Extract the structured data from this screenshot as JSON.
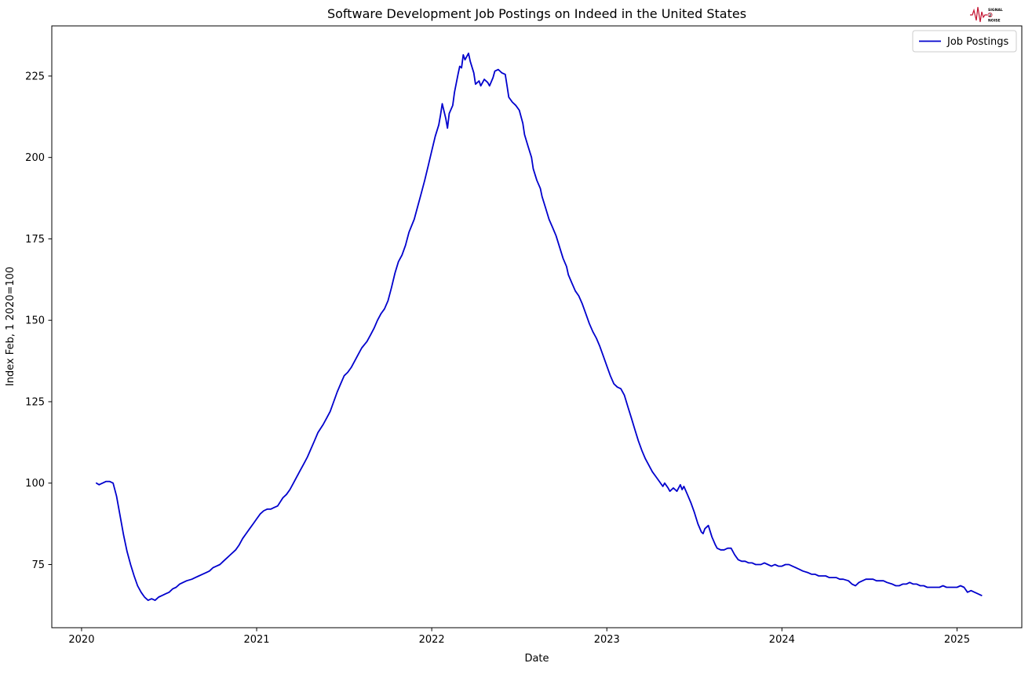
{
  "logo": {
    "word_top": "SIGNAL",
    "word_mid": "2",
    "word_bottom": "NOISE",
    "color": "#c41230"
  },
  "chart_data": {
    "type": "line",
    "title": "Software Development Job Postings on Indeed in the United States",
    "xlabel": "Date",
    "ylabel": "Index Feb, 1 2020=100",
    "grid": false,
    "legend_position": "upper right",
    "xlim": [
      2019.83,
      2025.37
    ],
    "ylim": [
      55.6,
      240.4
    ],
    "xticks": [
      2020,
      2021,
      2022,
      2023,
      2024,
      2025
    ],
    "yticks": [
      75,
      100,
      125,
      150,
      175,
      200,
      225
    ],
    "series": [
      {
        "name": "Job Postings",
        "color": "#0000cd",
        "points": [
          [
            2020.085,
            100.0
          ],
          [
            2020.1,
            99.5
          ],
          [
            2020.12,
            100.0
          ],
          [
            2020.14,
            100.5
          ],
          [
            2020.16,
            100.5
          ],
          [
            2020.18,
            100.0
          ],
          [
            2020.2,
            96.0
          ],
          [
            2020.22,
            90.0
          ],
          [
            2020.24,
            84.0
          ],
          [
            2020.26,
            79.0
          ],
          [
            2020.28,
            75.0
          ],
          [
            2020.3,
            71.5
          ],
          [
            2020.32,
            68.5
          ],
          [
            2020.34,
            66.5
          ],
          [
            2020.36,
            65.0
          ],
          [
            2020.38,
            64.0
          ],
          [
            2020.4,
            64.5
          ],
          [
            2020.42,
            64.0
          ],
          [
            2020.44,
            65.0
          ],
          [
            2020.46,
            65.5
          ],
          [
            2020.48,
            66.0
          ],
          [
            2020.5,
            66.5
          ],
          [
            2020.52,
            67.5
          ],
          [
            2020.54,
            68.0
          ],
          [
            2020.56,
            69.0
          ],
          [
            2020.58,
            69.5
          ],
          [
            2020.6,
            70.0
          ],
          [
            2020.63,
            70.5
          ],
          [
            2020.65,
            71.0
          ],
          [
            2020.67,
            71.5
          ],
          [
            2020.69,
            72.0
          ],
          [
            2020.71,
            72.5
          ],
          [
            2020.73,
            73.0
          ],
          [
            2020.75,
            74.0
          ],
          [
            2020.77,
            74.5
          ],
          [
            2020.79,
            75.0
          ],
          [
            2020.81,
            76.0
          ],
          [
            2020.83,
            77.0
          ],
          [
            2020.85,
            78.0
          ],
          [
            2020.88,
            79.5
          ],
          [
            2020.9,
            81.0
          ],
          [
            2020.92,
            83.0
          ],
          [
            2020.94,
            84.5
          ],
          [
            2020.96,
            86.0
          ],
          [
            2020.98,
            87.5
          ],
          [
            2021.0,
            89.0
          ],
          [
            2021.02,
            90.5
          ],
          [
            2021.04,
            91.5
          ],
          [
            2021.06,
            92.0
          ],
          [
            2021.08,
            92.0
          ],
          [
            2021.1,
            92.5
          ],
          [
            2021.12,
            93.0
          ],
          [
            2021.15,
            95.5
          ],
          [
            2021.17,
            96.5
          ],
          [
            2021.19,
            98.0
          ],
          [
            2021.21,
            100.0
          ],
          [
            2021.23,
            102.0
          ],
          [
            2021.25,
            104.0
          ],
          [
            2021.27,
            106.0
          ],
          [
            2021.29,
            108.0
          ],
          [
            2021.31,
            110.5
          ],
          [
            2021.33,
            113.0
          ],
          [
            2021.35,
            115.5
          ],
          [
            2021.38,
            118.0
          ],
          [
            2021.4,
            120.0
          ],
          [
            2021.42,
            122.0
          ],
          [
            2021.44,
            125.0
          ],
          [
            2021.46,
            128.0
          ],
          [
            2021.48,
            130.5
          ],
          [
            2021.5,
            133.0
          ],
          [
            2021.52,
            134.0
          ],
          [
            2021.54,
            135.5
          ],
          [
            2021.56,
            137.5
          ],
          [
            2021.58,
            139.5
          ],
          [
            2021.6,
            141.5
          ],
          [
            2021.63,
            143.5
          ],
          [
            2021.65,
            145.5
          ],
          [
            2021.67,
            147.5
          ],
          [
            2021.69,
            150.0
          ],
          [
            2021.71,
            152.0
          ],
          [
            2021.73,
            153.5
          ],
          [
            2021.75,
            156.0
          ],
          [
            2021.77,
            160.0
          ],
          [
            2021.79,
            164.5
          ],
          [
            2021.81,
            168.0
          ],
          [
            2021.83,
            170.0
          ],
          [
            2021.85,
            173.0
          ],
          [
            2021.87,
            177.0
          ],
          [
            2021.9,
            181.0
          ],
          [
            2021.92,
            185.0
          ],
          [
            2021.94,
            189.0
          ],
          [
            2021.96,
            193.0
          ],
          [
            2021.98,
            197.5
          ],
          [
            2022.0,
            202.0
          ],
          [
            2022.02,
            206.5
          ],
          [
            2022.04,
            210.0
          ],
          [
            2022.05,
            213.0
          ],
          [
            2022.06,
            216.5
          ],
          [
            2022.08,
            212.0
          ],
          [
            2022.09,
            209.0
          ],
          [
            2022.1,
            213.5
          ],
          [
            2022.12,
            216.0
          ],
          [
            2022.13,
            220.0
          ],
          [
            2022.15,
            225.5
          ],
          [
            2022.16,
            228.0
          ],
          [
            2022.17,
            227.5
          ],
          [
            2022.18,
            231.5
          ],
          [
            2022.19,
            230.0
          ],
          [
            2022.21,
            232.0
          ],
          [
            2022.22,
            229.5
          ],
          [
            2022.24,
            226.0
          ],
          [
            2022.25,
            222.5
          ],
          [
            2022.27,
            223.5
          ],
          [
            2022.28,
            222.0
          ],
          [
            2022.3,
            224.0
          ],
          [
            2022.32,
            223.0
          ],
          [
            2022.33,
            222.0
          ],
          [
            2022.35,
            224.5
          ],
          [
            2022.36,
            226.5
          ],
          [
            2022.38,
            227.0
          ],
          [
            2022.4,
            226.0
          ],
          [
            2022.42,
            225.5
          ],
          [
            2022.43,
            222.0
          ],
          [
            2022.44,
            218.5
          ],
          [
            2022.46,
            217.0
          ],
          [
            2022.48,
            216.0
          ],
          [
            2022.5,
            214.5
          ],
          [
            2022.52,
            210.5
          ],
          [
            2022.53,
            207.0
          ],
          [
            2022.55,
            203.5
          ],
          [
            2022.57,
            200.0
          ],
          [
            2022.58,
            196.5
          ],
          [
            2022.6,
            193.0
          ],
          [
            2022.62,
            190.5
          ],
          [
            2022.63,
            188.0
          ],
          [
            2022.65,
            184.5
          ],
          [
            2022.67,
            181.0
          ],
          [
            2022.69,
            178.5
          ],
          [
            2022.71,
            176.0
          ],
          [
            2022.73,
            172.5
          ],
          [
            2022.75,
            169.0
          ],
          [
            2022.77,
            166.5
          ],
          [
            2022.78,
            164.0
          ],
          [
            2022.8,
            161.5
          ],
          [
            2022.82,
            159.0
          ],
          [
            2022.84,
            157.5
          ],
          [
            2022.86,
            155.0
          ],
          [
            2022.88,
            152.0
          ],
          [
            2022.9,
            149.0
          ],
          [
            2022.92,
            146.5
          ],
          [
            2022.94,
            144.5
          ],
          [
            2022.96,
            142.0
          ],
          [
            2022.98,
            139.0
          ],
          [
            2023.0,
            136.0
          ],
          [
            2023.02,
            133.0
          ],
          [
            2023.04,
            130.5
          ],
          [
            2023.06,
            129.5
          ],
          [
            2023.08,
            129.0
          ],
          [
            2023.1,
            127.0
          ],
          [
            2023.12,
            123.5
          ],
          [
            2023.14,
            120.0
          ],
          [
            2023.16,
            116.5
          ],
          [
            2023.18,
            113.0
          ],
          [
            2023.2,
            110.0
          ],
          [
            2023.22,
            107.5
          ],
          [
            2023.24,
            105.5
          ],
          [
            2023.26,
            103.5
          ],
          [
            2023.28,
            102.0
          ],
          [
            2023.3,
            100.5
          ],
          [
            2023.32,
            99.0
          ],
          [
            2023.33,
            100.0
          ],
          [
            2023.35,
            98.5
          ],
          [
            2023.36,
            97.5
          ],
          [
            2023.38,
            98.5
          ],
          [
            2023.4,
            97.5
          ],
          [
            2023.42,
            99.5
          ],
          [
            2023.43,
            98.0
          ],
          [
            2023.44,
            99.0
          ],
          [
            2023.46,
            96.5
          ],
          [
            2023.48,
            94.0
          ],
          [
            2023.5,
            91.0
          ],
          [
            2023.52,
            87.5
          ],
          [
            2023.54,
            85.0
          ],
          [
            2023.55,
            84.5
          ],
          [
            2023.56,
            86.0
          ],
          [
            2023.58,
            87.0
          ],
          [
            2023.6,
            83.5
          ],
          [
            2023.62,
            81.0
          ],
          [
            2023.63,
            80.0
          ],
          [
            2023.65,
            79.5
          ],
          [
            2023.67,
            79.5
          ],
          [
            2023.69,
            80.0
          ],
          [
            2023.71,
            80.0
          ],
          [
            2023.73,
            78.0
          ],
          [
            2023.75,
            76.5
          ],
          [
            2023.77,
            76.0
          ],
          [
            2023.79,
            76.0
          ],
          [
            2023.81,
            75.5
          ],
          [
            2023.83,
            75.5
          ],
          [
            2023.85,
            75.0
          ],
          [
            2023.88,
            75.0
          ],
          [
            2023.9,
            75.5
          ],
          [
            2023.92,
            75.0
          ],
          [
            2023.94,
            74.5
          ],
          [
            2023.96,
            75.0
          ],
          [
            2023.98,
            74.5
          ],
          [
            2024.0,
            74.5
          ],
          [
            2024.02,
            75.0
          ],
          [
            2024.04,
            75.0
          ],
          [
            2024.06,
            74.5
          ],
          [
            2024.08,
            74.0
          ],
          [
            2024.1,
            73.5
          ],
          [
            2024.12,
            73.0
          ],
          [
            2024.15,
            72.5
          ],
          [
            2024.17,
            72.0
          ],
          [
            2024.19,
            72.0
          ],
          [
            2024.21,
            71.5
          ],
          [
            2024.23,
            71.5
          ],
          [
            2024.25,
            71.5
          ],
          [
            2024.27,
            71.0
          ],
          [
            2024.29,
            71.0
          ],
          [
            2024.31,
            71.0
          ],
          [
            2024.33,
            70.5
          ],
          [
            2024.35,
            70.5
          ],
          [
            2024.38,
            70.0
          ],
          [
            2024.4,
            69.0
          ],
          [
            2024.42,
            68.5
          ],
          [
            2024.44,
            69.5
          ],
          [
            2024.46,
            70.0
          ],
          [
            2024.48,
            70.5
          ],
          [
            2024.5,
            70.5
          ],
          [
            2024.52,
            70.5
          ],
          [
            2024.54,
            70.0
          ],
          [
            2024.56,
            70.0
          ],
          [
            2024.58,
            70.0
          ],
          [
            2024.6,
            69.5
          ],
          [
            2024.63,
            69.0
          ],
          [
            2024.65,
            68.5
          ],
          [
            2024.67,
            68.5
          ],
          [
            2024.69,
            69.0
          ],
          [
            2024.71,
            69.0
          ],
          [
            2024.73,
            69.5
          ],
          [
            2024.75,
            69.0
          ],
          [
            2024.77,
            69.0
          ],
          [
            2024.79,
            68.5
          ],
          [
            2024.81,
            68.5
          ],
          [
            2024.83,
            68.0
          ],
          [
            2024.85,
            68.0
          ],
          [
            2024.88,
            68.0
          ],
          [
            2024.9,
            68.0
          ],
          [
            2024.92,
            68.5
          ],
          [
            2024.94,
            68.0
          ],
          [
            2024.96,
            68.0
          ],
          [
            2024.98,
            68.0
          ],
          [
            2025.0,
            68.0
          ],
          [
            2025.02,
            68.5
          ],
          [
            2025.04,
            68.0
          ],
          [
            2025.06,
            66.5
          ],
          [
            2025.08,
            67.0
          ],
          [
            2025.1,
            66.5
          ],
          [
            2025.12,
            66.0
          ],
          [
            2025.14,
            65.5
          ]
        ]
      }
    ]
  }
}
